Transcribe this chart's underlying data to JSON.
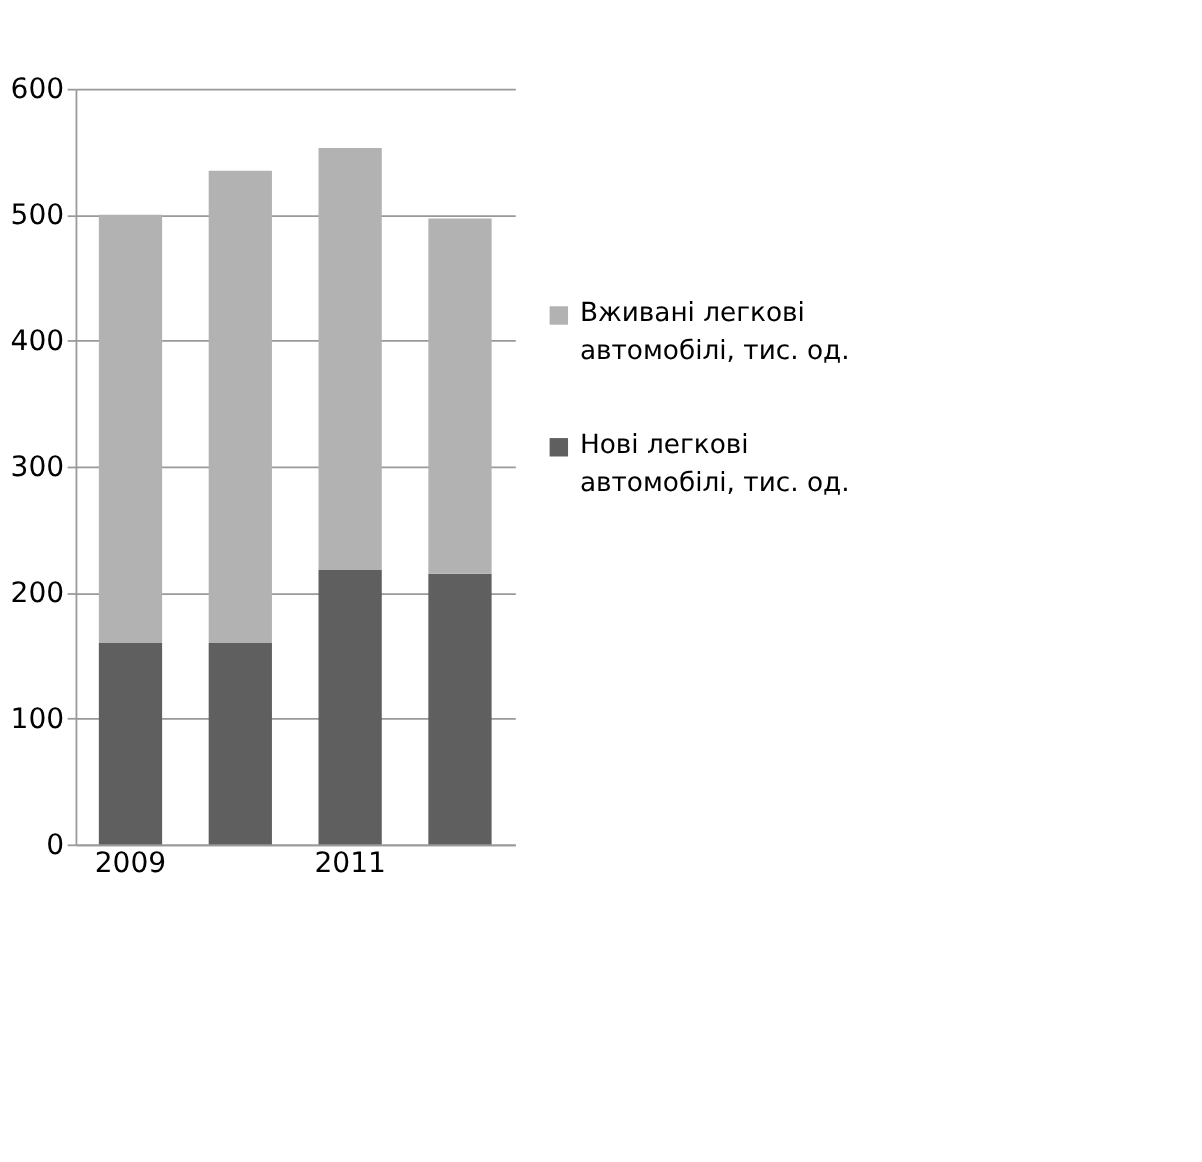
{
  "chart_data": {
    "type": "bar",
    "stacked": true,
    "categories": [
      "2009",
      null,
      "2011",
      null
    ],
    "series": [
      {
        "name": "Нові легкові автомобілі, тис. од.",
        "color": "#5f5f5f",
        "values": [
          160,
          160,
          218,
          215
        ]
      },
      {
        "name": "Вживані легкові автомобілі, тис. од.",
        "color": "#b2b2b2",
        "values": [
          340,
          375,
          335,
          282
        ]
      }
    ],
    "ylim": [
      0,
      600
    ],
    "yticks": [
      0,
      100,
      200,
      300,
      400,
      500,
      600
    ],
    "grid": "y",
    "legend": "right"
  }
}
